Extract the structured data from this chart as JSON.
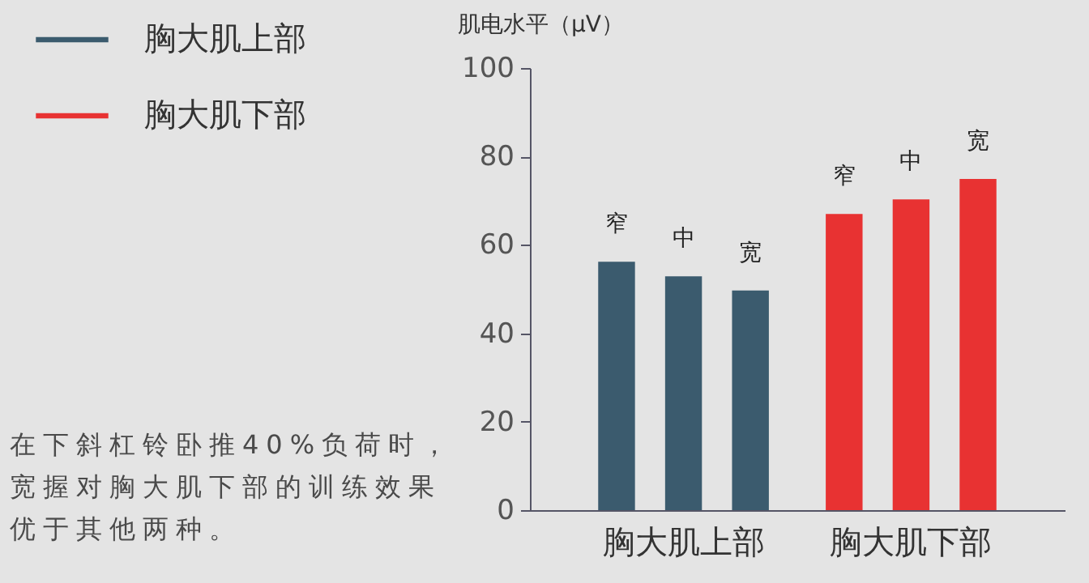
{
  "chart_data": {
    "type": "bar",
    "ylabel": "肌电水平（μV）",
    "categories": [
      "胸大肌上部",
      "胸大肌下部"
    ],
    "series": [
      {
        "name": "窄",
        "colors": [
          "#3b5b6e",
          "#e83232"
        ],
        "values": [
          56.2,
          67
        ]
      },
      {
        "name": "中",
        "colors": [
          "#3b5b6e",
          "#e83232"
        ],
        "values": [
          52.9,
          70.3
        ]
      },
      {
        "name": "宽",
        "colors": [
          "#3b5b6e",
          "#e83232"
        ],
        "values": [
          49.7,
          74.9
        ]
      }
    ],
    "ylim": [
      0,
      100
    ],
    "yticks": [
      0,
      20,
      40,
      60,
      80,
      100
    ],
    "legend": "top left",
    "annotations": [
      "在下斜杠铃卧推40%负荷时，宽握对胸大肌下部的训练效果优于其他两种。"
    ]
  }
}
